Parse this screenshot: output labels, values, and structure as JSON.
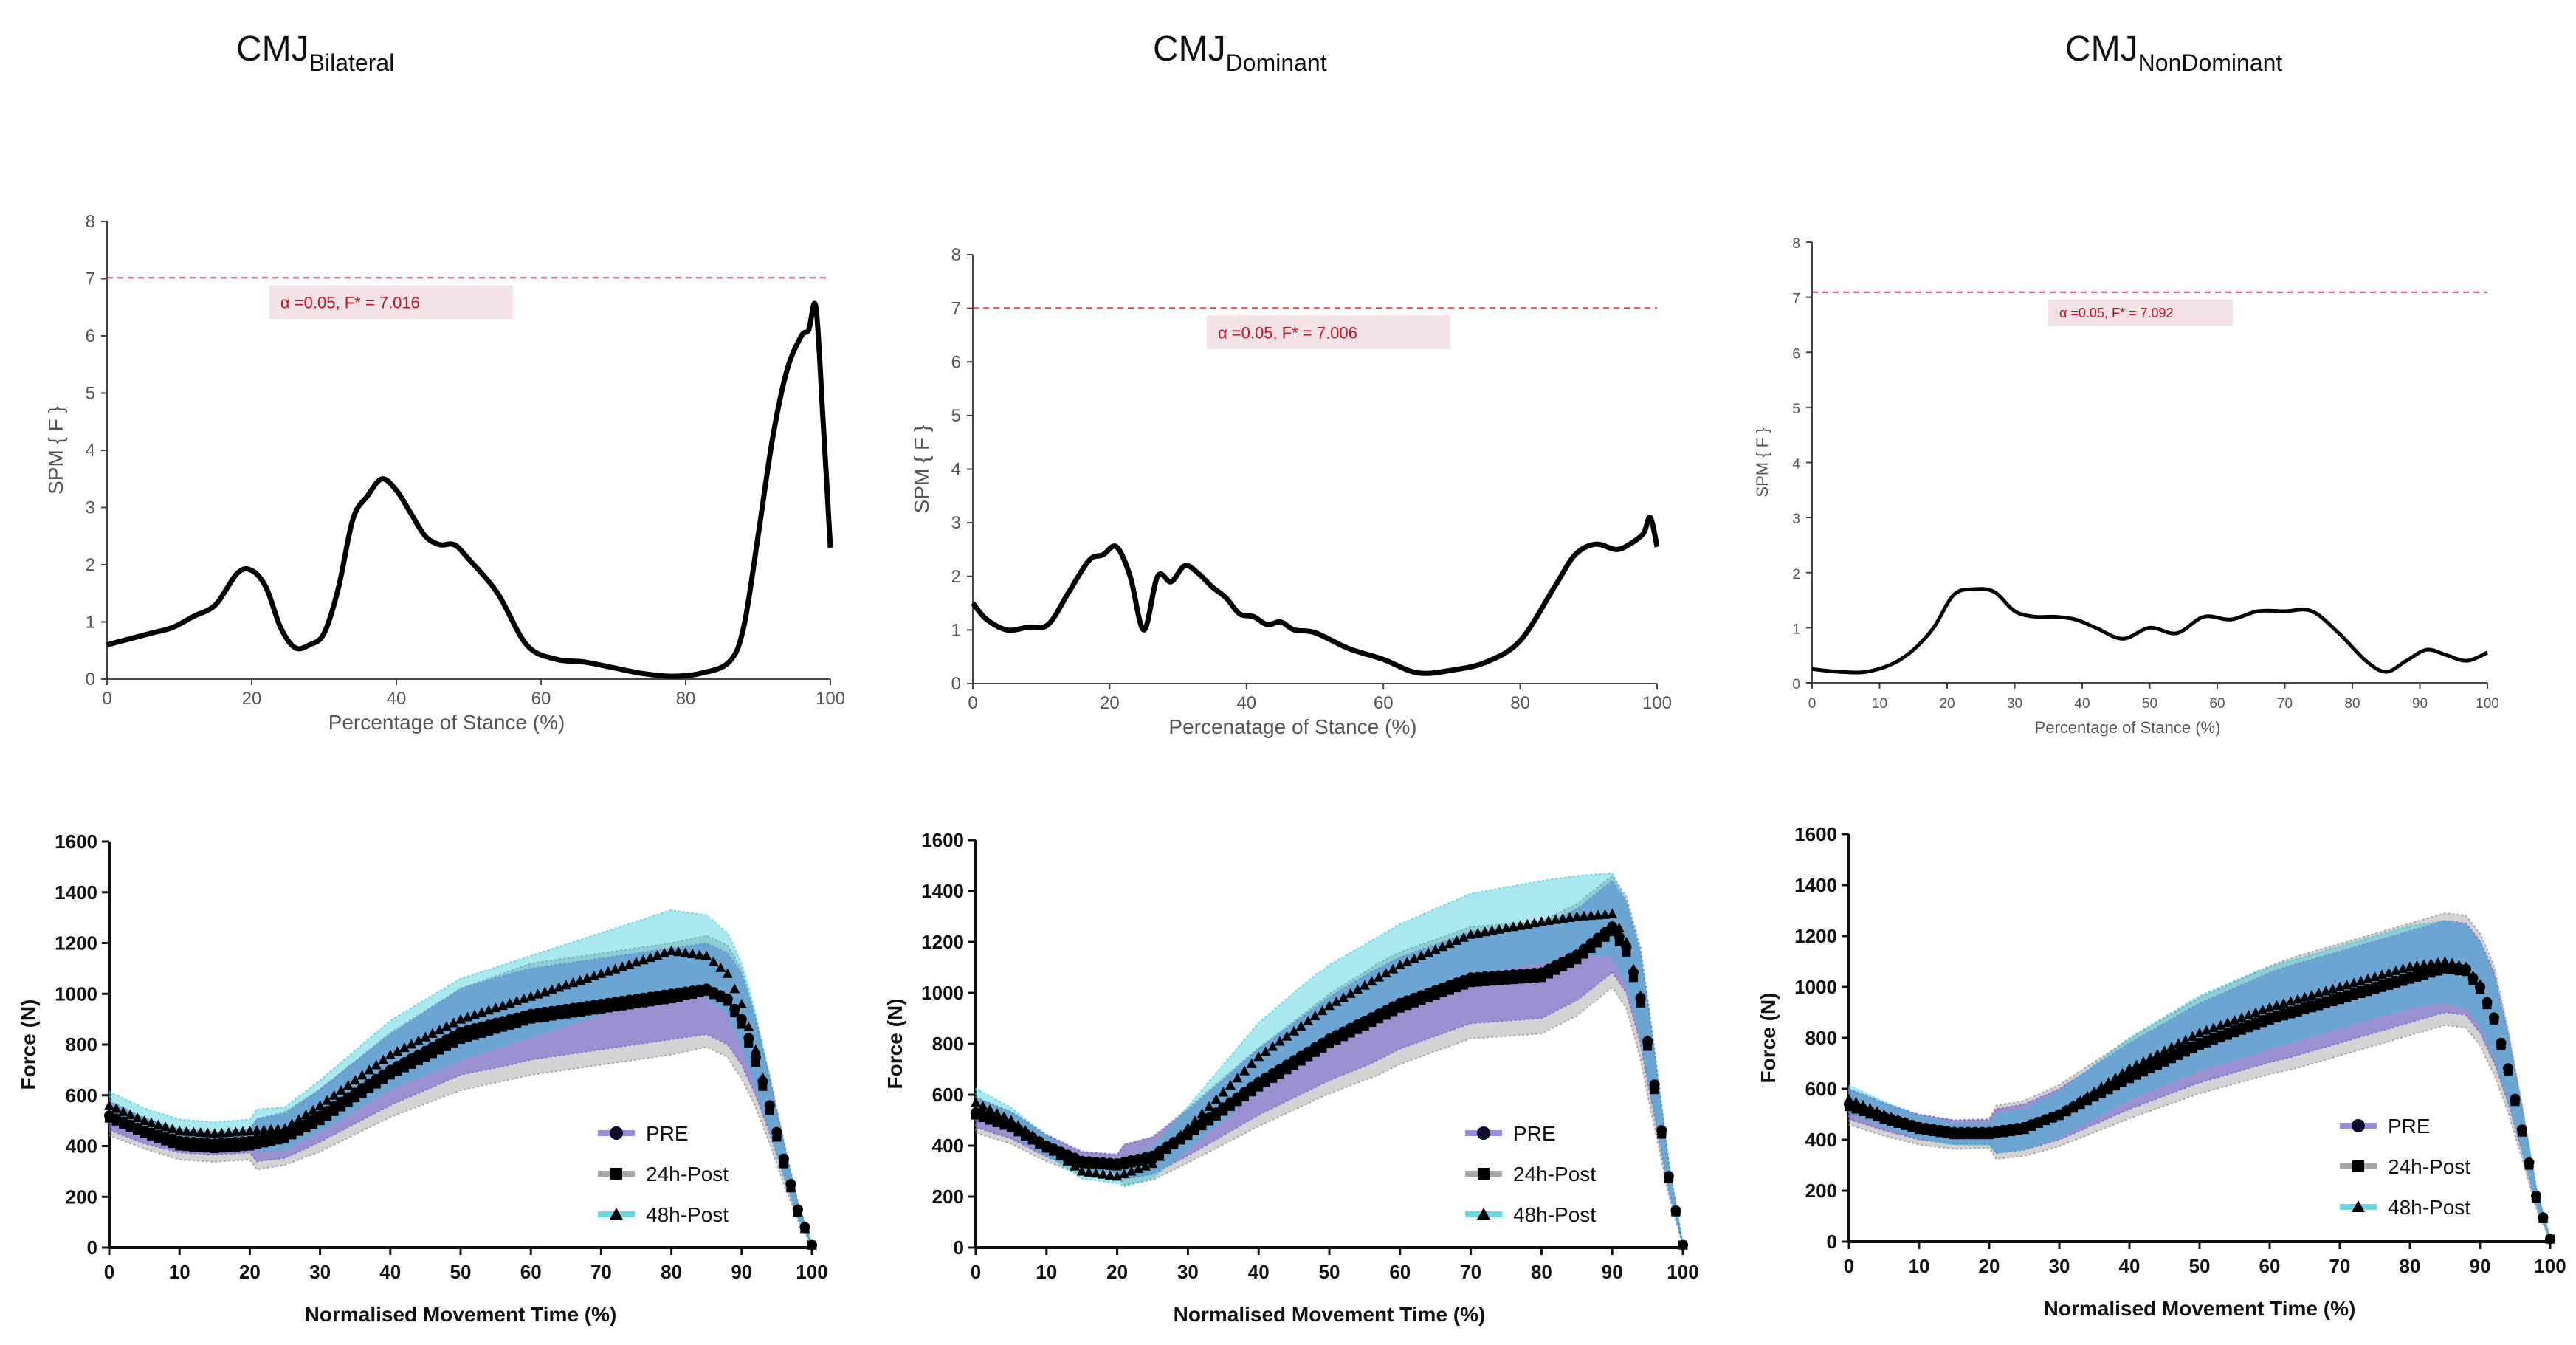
{
  "chart_data": [
    {
      "id": "spm_bilateral",
      "type": "line",
      "title": "CMJ",
      "title_sub": "Bilateral",
      "xlabel": "Percentage of Stance (%)",
      "ylabel": "SPM { F }",
      "xlim": [
        0,
        100
      ],
      "ylim": [
        0,
        8
      ],
      "xticks": [
        0,
        20,
        40,
        60,
        80,
        100
      ],
      "yticks": [
        0,
        1,
        2,
        3,
        4,
        5,
        6,
        7,
        8
      ],
      "threshold": 7.016,
      "threshold_label": "α  =0.05,     F* = 7.016",
      "x": [
        0,
        3,
        6,
        9,
        12,
        15,
        18,
        20,
        22,
        24,
        26,
        28,
        30,
        32,
        34,
        36,
        38,
        40,
        42,
        44,
        46,
        48,
        50,
        54,
        58,
        62,
        66,
        70,
        74,
        78,
        82,
        86,
        88,
        90,
        92,
        94,
        96,
        97,
        98,
        99,
        100
      ],
      "y": [
        0.6,
        0.7,
        0.8,
        0.9,
        1.1,
        1.3,
        1.85,
        1.9,
        1.6,
        0.9,
        0.55,
        0.6,
        0.8,
        1.6,
        2.8,
        3.2,
        3.5,
        3.3,
        2.9,
        2.5,
        2.35,
        2.35,
        2.1,
        1.5,
        0.6,
        0.35,
        0.3,
        0.2,
        0.1,
        0.05,
        0.1,
        0.3,
        0.9,
        2.5,
        4.2,
        5.4,
        6.0,
        6.1,
        6.5,
        4.5,
        2.3
      ]
    },
    {
      "id": "spm_dominant",
      "type": "line",
      "title": "CMJ",
      "title_sub": "Dominant",
      "xlabel": "Percenatage of Stance (%)",
      "ylabel": "SPM { F }",
      "xlim": [
        0,
        100
      ],
      "ylim": [
        0,
        8
      ],
      "xticks": [
        0,
        20,
        40,
        60,
        80,
        100
      ],
      "yticks": [
        0,
        1,
        2,
        3,
        4,
        5,
        6,
        7,
        8
      ],
      "threshold": 7.006,
      "threshold_label": "α  =0.05,     F* = 7.006",
      "x": [
        0,
        2,
        5,
        8,
        11,
        14,
        17,
        19,
        21,
        23,
        25,
        27,
        29,
        31,
        33,
        35,
        37,
        39,
        41,
        43,
        45,
        47,
        50,
        55,
        60,
        65,
        70,
        75,
        80,
        85,
        88,
        91,
        94,
        96,
        98,
        99,
        100
      ],
      "y": [
        1.5,
        1.2,
        1.0,
        1.05,
        1.1,
        1.7,
        2.3,
        2.4,
        2.55,
        2.0,
        1.0,
        2.0,
        1.9,
        2.2,
        2.05,
        1.8,
        1.6,
        1.3,
        1.25,
        1.1,
        1.15,
        1.0,
        0.95,
        0.65,
        0.45,
        0.2,
        0.25,
        0.4,
        0.8,
        1.8,
        2.4,
        2.6,
        2.5,
        2.6,
        2.8,
        3.1,
        2.55
      ]
    },
    {
      "id": "spm_nondominant",
      "type": "line",
      "title": "CMJ",
      "title_sub": "NonDominant",
      "xlabel": "Percentage of Stance (%)",
      "ylabel": "SPM { F }",
      "xlim": [
        0,
        100
      ],
      "ylim": [
        0,
        8
      ],
      "xticks": [
        0,
        10,
        20,
        30,
        40,
        50,
        60,
        70,
        80,
        90,
        100
      ],
      "yticks": [
        0,
        1,
        2,
        3,
        4,
        5,
        6,
        7,
        8
      ],
      "threshold": 7.092,
      "threshold_label": "α  =0.05,     F* = 7.092",
      "x": [
        0,
        4,
        8,
        12,
        15,
        18,
        21,
        24,
        27,
        30,
        33,
        36,
        39,
        42,
        46,
        50,
        54,
        58,
        62,
        66,
        70,
        74,
        78,
        82,
        85,
        88,
        91,
        94,
        97,
        100
      ],
      "y": [
        0.25,
        0.2,
        0.2,
        0.35,
        0.6,
        1.0,
        1.6,
        1.7,
        1.65,
        1.3,
        1.2,
        1.2,
        1.15,
        1.0,
        0.8,
        1.0,
        0.9,
        1.2,
        1.15,
        1.3,
        1.3,
        1.3,
        0.9,
        0.4,
        0.2,
        0.4,
        0.6,
        0.5,
        0.4,
        0.55
      ]
    },
    {
      "id": "force_bilateral",
      "type": "line",
      "xlabel": "Normalised Movement Time (%)",
      "ylabel": "Force (N)",
      "xlim": [
        0,
        100
      ],
      "ylim": [
        0,
        1600
      ],
      "xticks": [
        0,
        10,
        20,
        30,
        40,
        50,
        60,
        70,
        80,
        90,
        100
      ],
      "yticks": [
        0,
        200,
        400,
        600,
        800,
        1000,
        1200,
        1400,
        1600
      ],
      "x": [
        0,
        5,
        10,
        15,
        20,
        25,
        30,
        40,
        50,
        60,
        70,
        80,
        85,
        88,
        90,
        92,
        94,
        96,
        98,
        100
      ],
      "series": [
        {
          "name": "PRE",
          "values": [
            520,
            460,
            420,
            410,
            420,
            440,
            520,
            700,
            850,
            920,
            960,
            1000,
            1020,
            980,
            900,
            750,
            560,
            350,
            150,
            10
          ]
        },
        {
          "name": "24h-Post",
          "values": [
            510,
            450,
            400,
            390,
            400,
            430,
            500,
            680,
            820,
            900,
            940,
            980,
            1010,
            970,
            880,
            730,
            540,
            330,
            140,
            10
          ]
        },
        {
          "name": "48h-Post",
          "values": [
            560,
            500,
            460,
            450,
            460,
            470,
            560,
            760,
            900,
            990,
            1080,
            1170,
            1150,
            1080,
            960,
            780,
            560,
            340,
            140,
            10
          ]
        }
      ]
    },
    {
      "id": "force_dominant",
      "type": "line",
      "xlabel": "Normalised Movement Time (%)",
      "ylabel": "Force (N)",
      "xlim": [
        0,
        100
      ],
      "ylim": [
        0,
        1600
      ],
      "xticks": [
        0,
        10,
        20,
        30,
        40,
        50,
        60,
        70,
        80,
        90,
        100
      ],
      "yticks": [
        0,
        200,
        400,
        600,
        800,
        1000,
        1200,
        1400,
        1600
      ],
      "x": [
        0,
        5,
        10,
        15,
        20,
        25,
        30,
        40,
        50,
        60,
        70,
        80,
        85,
        90,
        92,
        94,
        96,
        98,
        100
      ],
      "series": [
        {
          "name": "PRE",
          "values": [
            530,
            480,
            400,
            340,
            330,
            360,
            450,
            650,
            820,
            960,
            1060,
            1080,
            1150,
            1260,
            1180,
            980,
            640,
            280,
            10
          ]
        },
        {
          "name": "24h-Post",
          "values": [
            520,
            470,
            390,
            330,
            320,
            350,
            440,
            630,
            800,
            940,
            1040,
            1060,
            1130,
            1240,
            1160,
            960,
            620,
            270,
            10
          ]
        },
        {
          "name": "48h-Post",
          "values": [
            570,
            500,
            400,
            300,
            280,
            330,
            470,
            750,
            950,
            1110,
            1230,
            1280,
            1300,
            1310,
            1200,
            990,
            640,
            280,
            10
          ]
        }
      ]
    },
    {
      "id": "force_nondominant",
      "type": "line",
      "xlabel": "Normalised Movement Time (%)",
      "ylabel": "Force (N)",
      "xlim": [
        0,
        100
      ],
      "ylim": [
        0,
        1600
      ],
      "xticks": [
        0,
        10,
        20,
        30,
        40,
        50,
        60,
        70,
        80,
        90,
        100
      ],
      "yticks": [
        0,
        200,
        400,
        600,
        800,
        1000,
        1200,
        1400,
        1600
      ],
      "x": [
        0,
        5,
        10,
        15,
        20,
        25,
        30,
        40,
        50,
        60,
        70,
        80,
        85,
        88,
        90,
        92,
        94,
        96,
        98,
        100
      ],
      "series": [
        {
          "name": "PRE",
          "values": [
            540,
            490,
            450,
            430,
            430,
            450,
            500,
            650,
            780,
            880,
            960,
            1040,
            1080,
            1070,
            1000,
            880,
            680,
            440,
            180,
            10
          ]
        },
        {
          "name": "24h-Post",
          "values": [
            530,
            480,
            440,
            420,
            425,
            445,
            495,
            640,
            770,
            870,
            950,
            1030,
            1070,
            1060,
            990,
            870,
            670,
            430,
            170,
            10
          ]
        },
        {
          "name": "48h-Post",
          "values": [
            560,
            500,
            450,
            420,
            420,
            440,
            500,
            680,
            820,
            920,
            1000,
            1080,
            1100,
            1080,
            1010,
            880,
            680,
            440,
            180,
            10
          ]
        }
      ]
    }
  ],
  "legend": {
    "pre": "PRE",
    "post24": "24h-Post",
    "post48": "48h-Post"
  },
  "colors": {
    "spm_line": "#000000",
    "threshold": "#c8101e",
    "pre": "#6a5acd",
    "post24": "#808080",
    "post48": "#29c5d4",
    "mean": "#000000"
  }
}
